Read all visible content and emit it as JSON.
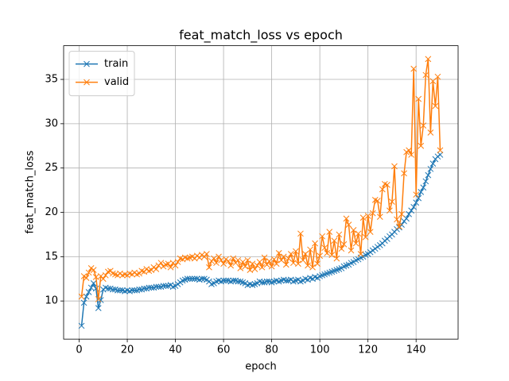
{
  "chart_data": {
    "type": "line",
    "title": "feat_match_loss vs epoch",
    "x_label": "epoch",
    "y_label": "feat_match_loss",
    "x": [
      1,
      2,
      3,
      4,
      5,
      6,
      7,
      8,
      9,
      10,
      11,
      12,
      13,
      14,
      15,
      16,
      17,
      18,
      19,
      20,
      21,
      22,
      23,
      24,
      25,
      26,
      27,
      28,
      29,
      30,
      31,
      32,
      33,
      34,
      35,
      36,
      37,
      38,
      39,
      40,
      41,
      42,
      43,
      44,
      45,
      46,
      47,
      48,
      49,
      50,
      51,
      52,
      53,
      54,
      55,
      56,
      57,
      58,
      59,
      60,
      61,
      62,
      63,
      64,
      65,
      66,
      67,
      68,
      69,
      70,
      71,
      72,
      73,
      74,
      75,
      76,
      77,
      78,
      79,
      80,
      81,
      82,
      83,
      84,
      85,
      86,
      87,
      88,
      89,
      90,
      91,
      92,
      93,
      94,
      95,
      96,
      97,
      98,
      99,
      100,
      101,
      102,
      103,
      104,
      105,
      106,
      107,
      108,
      109,
      110,
      111,
      112,
      113,
      114,
      115,
      116,
      117,
      118,
      119,
      120,
      121,
      122,
      123,
      124,
      125,
      126,
      127,
      128,
      129,
      130,
      131,
      132,
      133,
      134,
      135,
      136,
      137,
      138,
      139,
      140,
      141,
      142,
      143,
      144,
      145,
      146,
      147,
      148,
      149,
      150
    ],
    "series": [
      {
        "name": "train",
        "color": "#1f77b4",
        "values": [
          7.2,
          9.8,
          10.5,
          11.0,
          11.5,
          12.0,
          11.4,
          9.2,
          10.1,
          11.3,
          11.5,
          11.4,
          11.4,
          11.3,
          11.3,
          11.2,
          11.2,
          11.2,
          11.1,
          11.2,
          11.1,
          11.2,
          11.2,
          11.2,
          11.3,
          11.3,
          11.4,
          11.4,
          11.5,
          11.5,
          11.5,
          11.6,
          11.6,
          11.6,
          11.7,
          11.7,
          11.7,
          11.8,
          11.6,
          11.7,
          11.9,
          12.1,
          12.3,
          12.4,
          12.5,
          12.5,
          12.5,
          12.5,
          12.5,
          12.4,
          12.5,
          12.5,
          12.4,
          12.2,
          11.9,
          12.0,
          12.2,
          12.3,
          12.2,
          12.3,
          12.3,
          12.3,
          12.2,
          12.3,
          12.3,
          12.2,
          12.2,
          12.1,
          12.0,
          11.8,
          11.9,
          11.8,
          11.9,
          12.0,
          12.2,
          12.1,
          12.1,
          12.2,
          12.2,
          12.1,
          12.2,
          12.3,
          12.2,
          12.3,
          12.4,
          12.3,
          12.3,
          12.4,
          12.2,
          12.3,
          12.4,
          12.2,
          12.3,
          12.5,
          12.4,
          12.6,
          12.5,
          12.7,
          12.6,
          12.8,
          12.9,
          13.0,
          13.1,
          13.2,
          13.3,
          13.4,
          13.5,
          13.6,
          13.7,
          13.9,
          14.0,
          14.1,
          14.3,
          14.4,
          14.6,
          14.7,
          14.9,
          15.0,
          15.2,
          15.3,
          15.5,
          15.7,
          15.9,
          16.1,
          16.3,
          16.5,
          16.8,
          17.0,
          17.3,
          17.5,
          17.8,
          18.1,
          18.3,
          18.6,
          19.0,
          19.3,
          19.8,
          20.2,
          20.6,
          21.1,
          21.6,
          22.3,
          22.8,
          23.5,
          24.2,
          24.9,
          25.5,
          26.0,
          26.3,
          26.5
        ]
      },
      {
        "name": "valid",
        "color": "#ff7f0e",
        "values": [
          10.5,
          12.8,
          12.6,
          13.2,
          13.7,
          13.5,
          12.7,
          10.2,
          12.8,
          12.5,
          12.9,
          13.3,
          13.4,
          13.1,
          13.0,
          12.9,
          13.1,
          12.9,
          13.0,
          12.9,
          13.1,
          13.0,
          13.2,
          13.0,
          13.1,
          13.4,
          13.3,
          13.6,
          13.4,
          13.5,
          13.8,
          13.6,
          14.0,
          14.3,
          13.9,
          14.1,
          14.2,
          13.8,
          14.3,
          14.0,
          14.4,
          14.8,
          14.7,
          14.9,
          14.8,
          14.9,
          15.0,
          14.8,
          15.1,
          14.9,
          15.2,
          15.0,
          15.3,
          13.8,
          14.5,
          14.8,
          14.3,
          15.0,
          14.6,
          14.2,
          14.7,
          14.5,
          14.0,
          14.8,
          14.3,
          14.6,
          13.7,
          14.4,
          13.9,
          14.6,
          13.5,
          14.2,
          13.6,
          14.0,
          14.4,
          13.8,
          14.9,
          14.1,
          14.5,
          13.9,
          14.7,
          14.2,
          15.4,
          14.6,
          15.0,
          14.1,
          14.8,
          15.3,
          14.3,
          15.6,
          14.2,
          17.6,
          14.6,
          15.3,
          14.0,
          15.8,
          13.8,
          16.5,
          14.2,
          15.1,
          17.3,
          16.0,
          15.4,
          17.8,
          15.2,
          16.8,
          14.8,
          17.5,
          15.9,
          16.4,
          19.3,
          18.6,
          15.7,
          18.0,
          16.5,
          17.6,
          15.3,
          19.4,
          17.2,
          19.6,
          17.8,
          19.9,
          21.4,
          21.3,
          19.5,
          22.6,
          23.2,
          23.1,
          20.2,
          21.2,
          25.2,
          19.2,
          18.4,
          19.8,
          24.4,
          26.8,
          27.0,
          26.5,
          36.2,
          22.0,
          32.8,
          27.5,
          29.8,
          35.5,
          37.3,
          29.0,
          34.8,
          32.0,
          35.3,
          27.0
        ]
      }
    ],
    "xlim": [
      -6.45,
      157.45
    ],
    "ylim": [
      5.7,
      38.8
    ],
    "xticks": [
      0,
      20,
      40,
      60,
      80,
      100,
      120,
      140
    ],
    "yticks": [
      10,
      15,
      20,
      25,
      30,
      35
    ],
    "grid": true,
    "legend": "upper left",
    "marker": "x"
  }
}
